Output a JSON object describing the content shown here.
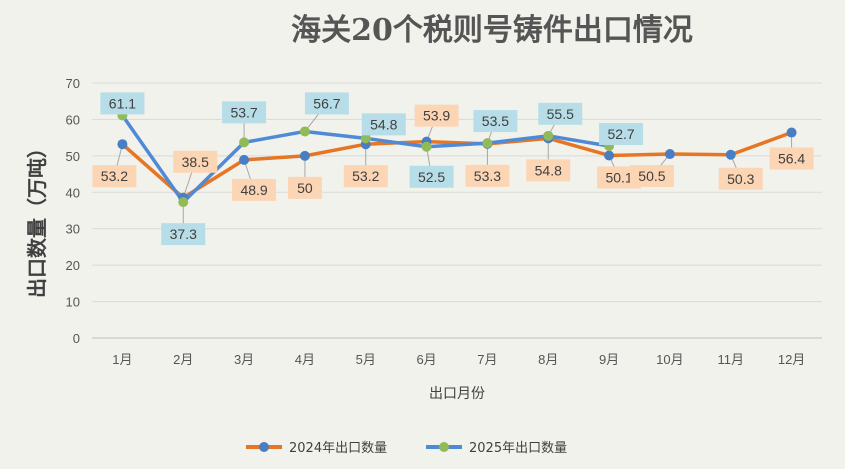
{
  "chart_data": {
    "type": "line",
    "title": "海关20个税则号铸件出口情况",
    "xlabel": "出口月份",
    "ylabel": "出口数量（万吨）",
    "ylim": [
      0,
      70
    ],
    "yticks": [
      0,
      10,
      20,
      30,
      40,
      50,
      60,
      70
    ],
    "categories": [
      "1月",
      "2月",
      "3月",
      "4月",
      "5月",
      "6月",
      "7月",
      "8月",
      "9月",
      "10月",
      "11月",
      "12月"
    ],
    "series": [
      {
        "name": "2024年出口数量",
        "color": "#e67624",
        "marker_color": "#4a7ec2",
        "label_bg": "#fcd5b4",
        "values": [
          53.2,
          38.5,
          48.9,
          50,
          53.2,
          53.9,
          53.3,
          54.8,
          50.1,
          50.5,
          50.3,
          56.4
        ]
      },
      {
        "name": "2025年出口数量",
        "color": "#4f8ad6",
        "marker_color": "#92bb58",
        "label_bg": "#b7dde8",
        "values": [
          61.1,
          37.3,
          53.7,
          56.7,
          54.8,
          52.5,
          53.5,
          55.5,
          52.7,
          null,
          null,
          null
        ]
      }
    ],
    "grid": true,
    "legend": "bottom"
  }
}
